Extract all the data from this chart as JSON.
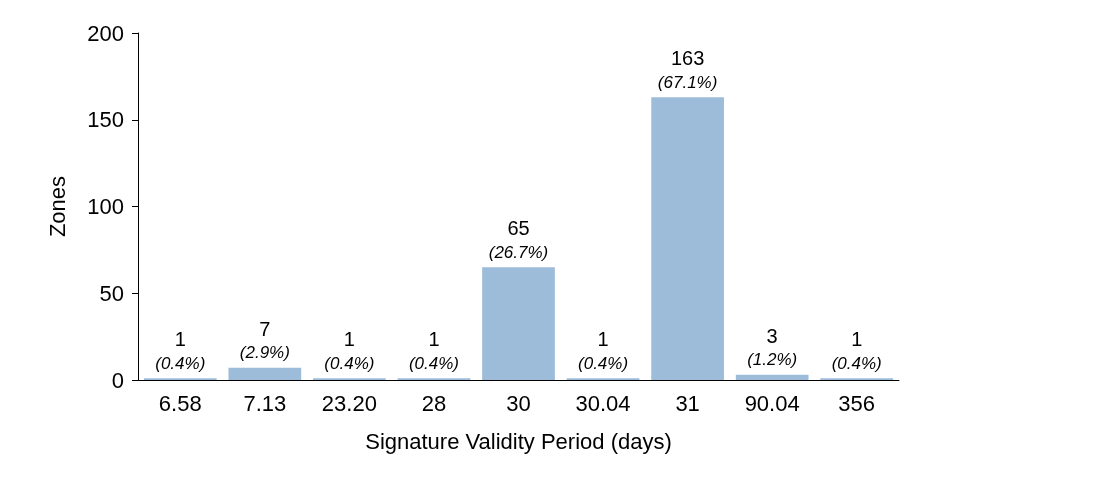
{
  "chart_data": {
    "type": "bar",
    "xlabel": "Signature Validity Period (days)",
    "ylabel": "Zones",
    "categories": [
      "6.58",
      "7.13",
      "23.20",
      "28",
      "30",
      "30.04",
      "31",
      "90.04",
      "356"
    ],
    "values": [
      1,
      7,
      1,
      1,
      65,
      1,
      163,
      3,
      1
    ],
    "value_labels": [
      "1\n(0.4%)",
      "7\n(2.9%)",
      "1\n(0.4%)",
      "1\n(0.4%)",
      "65\n(26.7%)",
      "1\n(0.4%)",
      "163\n(67.1%)",
      "3\n(1.2%)",
      "1\n(0.4%)"
    ],
    "color": "#9dbcd9",
    "ylim": [
      0,
      200
    ],
    "yticks": [
      0,
      50,
      100,
      150,
      200
    ],
    "grid": false
  }
}
